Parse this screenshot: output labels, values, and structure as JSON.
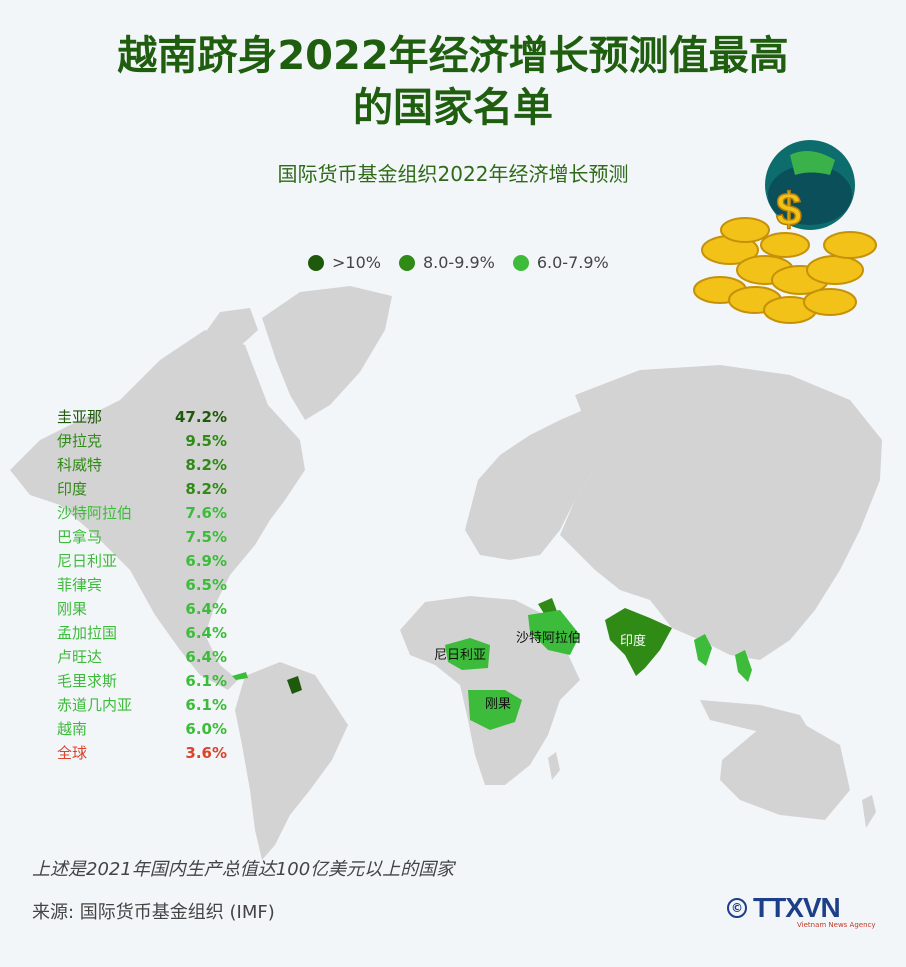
{
  "title": {
    "line1": "越南跻身2022年经济增长预测值最高",
    "line2": "的国家名单"
  },
  "subtitle": "国际货币基金组织2022年经济增长预测",
  "legend": [
    {
      "label": ">10%",
      "color": "#1f5a0c"
    },
    {
      "label": "8.0-9.9%",
      "color": "#2f8a16"
    },
    {
      "label": "6.0-7.9%",
      "color": "#3dbb3a"
    }
  ],
  "ranking": [
    {
      "country": "圭亚那",
      "value": "47.2%",
      "tier": "dark"
    },
    {
      "country": "伊拉克",
      "value": "9.5%",
      "tier": "mid"
    },
    {
      "country": "科威特",
      "value": "8.2%",
      "tier": "mid"
    },
    {
      "country": "印度",
      "value": "8.2%",
      "tier": "mid"
    },
    {
      "country": "沙特阿拉伯",
      "value": "7.6%",
      "tier": "light"
    },
    {
      "country": "巴拿马",
      "value": "7.5%",
      "tier": "light"
    },
    {
      "country": "尼日利亚",
      "value": "6.9%",
      "tier": "light"
    },
    {
      "country": "菲律宾",
      "value": "6.5%",
      "tier": "light"
    },
    {
      "country": "刚果",
      "value": "6.4%",
      "tier": "light"
    },
    {
      "country": "孟加拉国",
      "value": "6.4%",
      "tier": "light"
    },
    {
      "country": "卢旺达",
      "value": "6.4%",
      "tier": "light"
    },
    {
      "country": "毛里求斯",
      "value": "6.1%",
      "tier": "light"
    },
    {
      "country": "赤道几内亚",
      "value": "6.1%",
      "tier": "light"
    },
    {
      "country": "越南",
      "value": "6.0%",
      "tier": "light"
    },
    {
      "country": "全球",
      "value": "3.6%",
      "tier": "world"
    }
  ],
  "tier_colors": {
    "dark": "#1f5a0c",
    "mid": "#2f8a16",
    "light": "#3dbb3a",
    "world": "#d9442b"
  },
  "map_labels": {
    "nigeria": "尼日利亚",
    "saudi": "沙特阿拉伯",
    "india": "印度",
    "congo": "刚果"
  },
  "footnote": "上述是2021年国内生产总值达100亿美元以上的国家",
  "source": "来源: 国际货币基金组织 (IMF)",
  "logo": {
    "copyright": "©",
    "name": "TTXVN",
    "tagline": "Vietnam News Agency"
  }
}
